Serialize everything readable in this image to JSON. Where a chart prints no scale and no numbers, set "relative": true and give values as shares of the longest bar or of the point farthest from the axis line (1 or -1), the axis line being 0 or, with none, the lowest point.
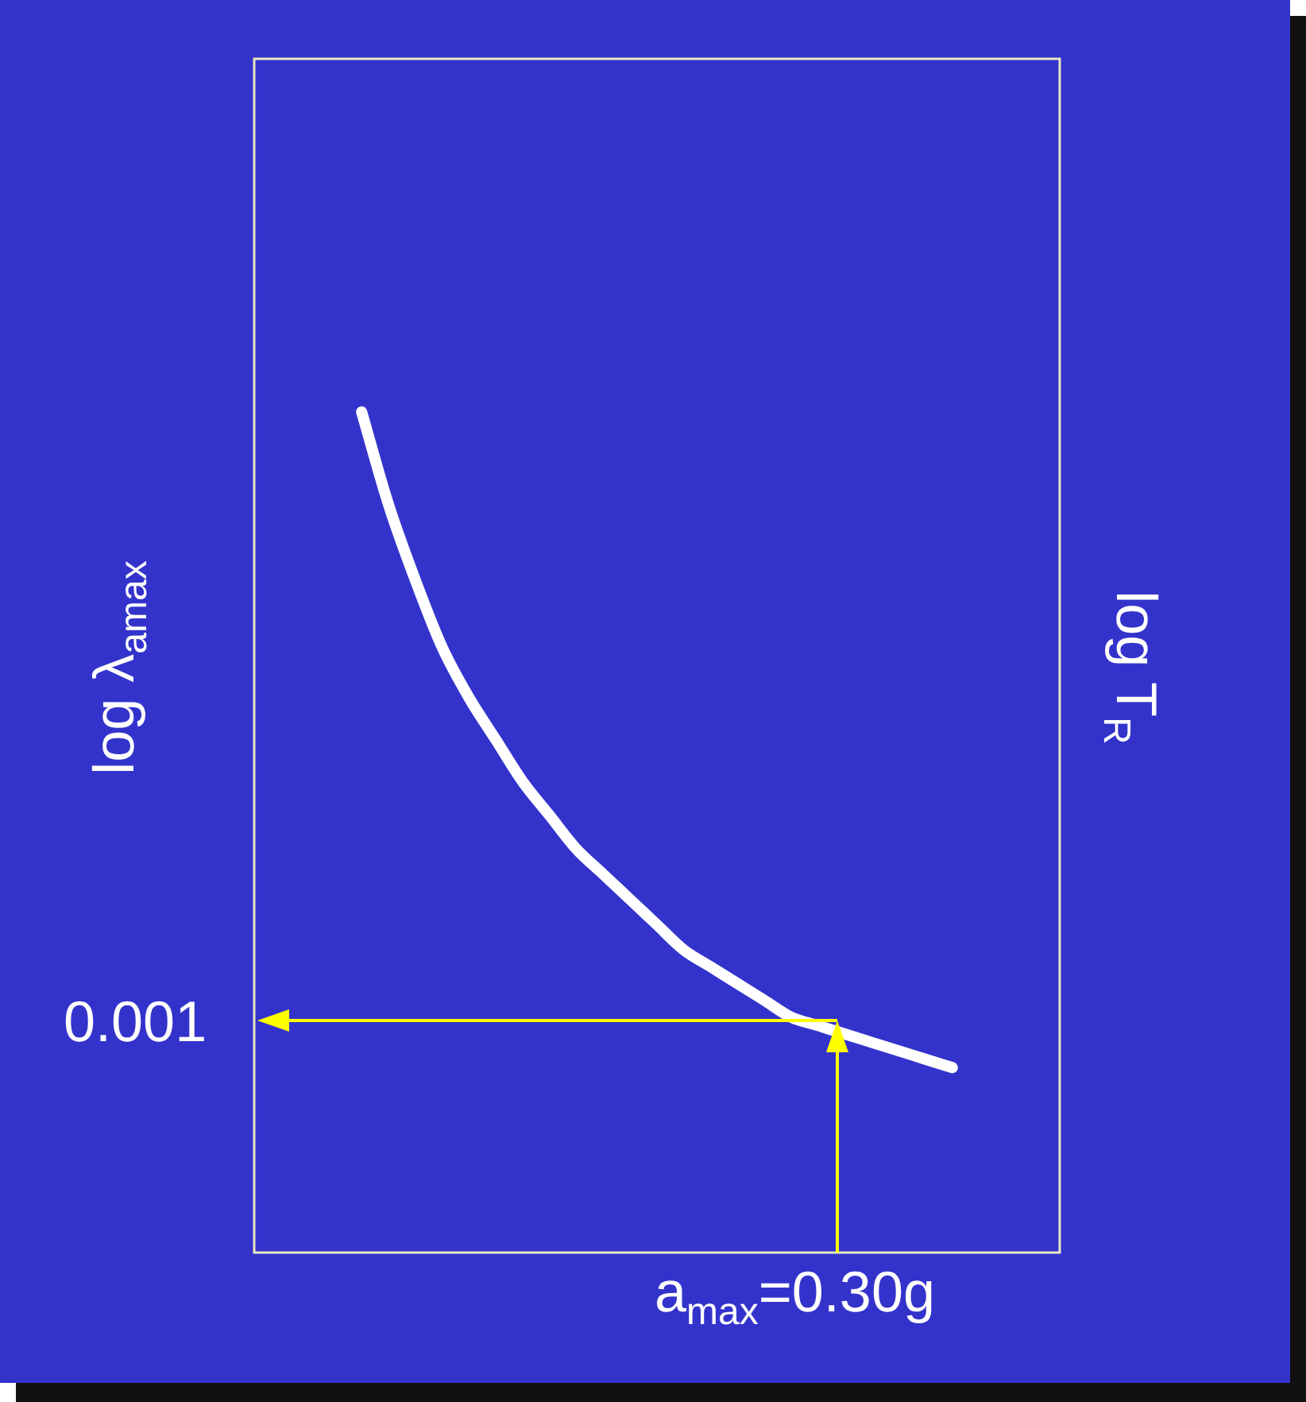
{
  "chart_data": {
    "type": "line",
    "relative": true,
    "ylabel": "log λ$_{amax}$",
    "y2label": "log T$_{R}$",
    "annotations": [
      "0.001",
      "a$_{max}$=0.30g"
    ],
    "categories": [
      null,
      null,
      null,
      null,
      null,
      null,
      null,
      null,
      null,
      null,
      null,
      null,
      null,
      null,
      null,
      null,
      null,
      null,
      null,
      null,
      null,
      null,
      null,
      null,
      null,
      null,
      null,
      null,
      null,
      null,
      null
    ],
    "series": [
      {
        "color": "#ffffff",
        "values": [
          null,
          null,
          null,
          null,
          1,
          0.89,
          0.8,
          0.72,
          0.66,
          0.61,
          0.56,
          0.52,
          0.48,
          0.45,
          0.42,
          0.39,
          0.36,
          0.34,
          0.32,
          0.3,
          0.28,
          0.27,
          0.26,
          0.25,
          0.24,
          0.23,
          0.22,
          null,
          null,
          null,
          null
        ]
      }
    ],
    "legend": false
  }
}
